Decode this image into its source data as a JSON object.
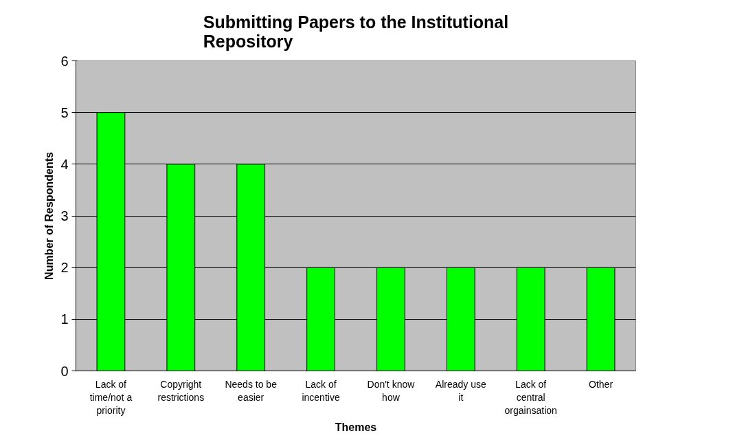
{
  "chart_data": {
    "type": "bar",
    "title": "Submitting Papers to the Institutional Repository",
    "xlabel": "Themes",
    "ylabel": "Number of Respondents",
    "categories": [
      "Lack of time/not a priority",
      "Copyright restrictions",
      "Needs to be easier",
      "Lack of incentive",
      "Don't know how",
      "Already use it",
      "Lack of central orgainsation",
      "Other"
    ],
    "values": [
      5,
      4,
      4,
      2,
      2,
      2,
      2,
      2
    ],
    "color": "#00ff00",
    "ylim": [
      0,
      6
    ],
    "yticks": [
      0,
      1,
      2,
      3,
      4,
      5,
      6
    ],
    "grid": "y"
  }
}
